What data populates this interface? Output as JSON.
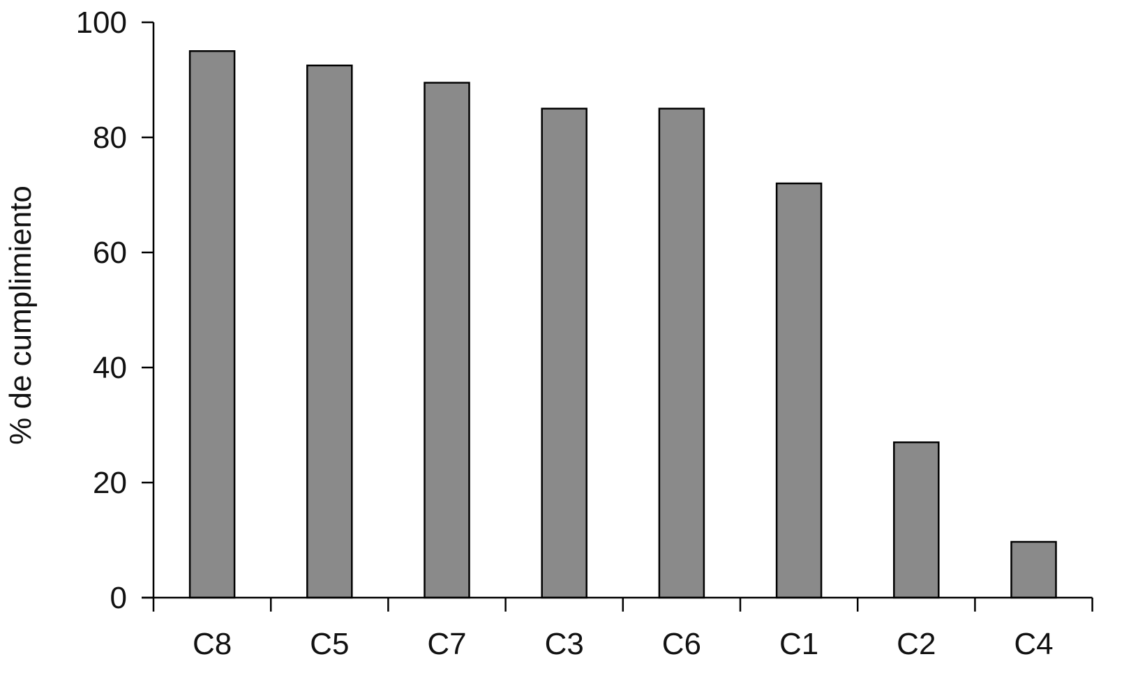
{
  "chart_data": {
    "type": "bar",
    "title": "",
    "xlabel": "",
    "ylabel": "% de cumplimiento",
    "categories": [
      "C8",
      "C5",
      "C7",
      "C3",
      "C6",
      "C1",
      "C2",
      "C4"
    ],
    "values": [
      95,
      92.5,
      89.5,
      85,
      85,
      72,
      27,
      9.7
    ],
    "ylim": [
      0,
      100
    ],
    "yticks": [
      0,
      20,
      40,
      60,
      80,
      100
    ],
    "grid": false,
    "legend": "none",
    "bar_color": "#8a8a8a",
    "edge_color": "#000000"
  }
}
